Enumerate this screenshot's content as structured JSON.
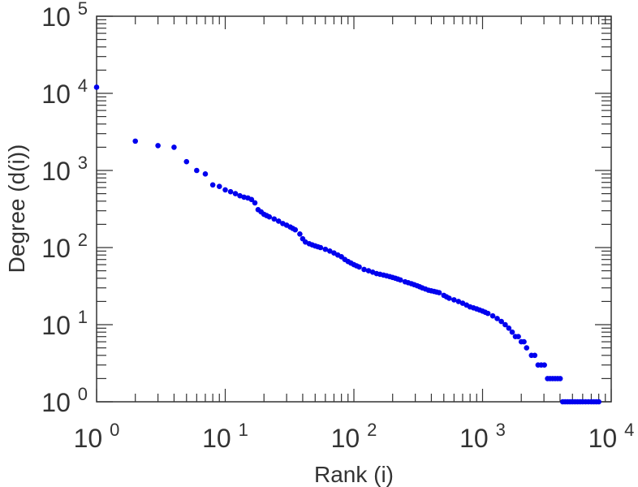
{
  "chart_data": {
    "type": "scatter",
    "xlabel": "Rank (i)",
    "ylabel": "Degree (d(i))",
    "x_scale": "log",
    "y_scale": "log",
    "xlim": [
      1,
      10000
    ],
    "ylim": [
      1,
      100000
    ],
    "x_ticks": [
      {
        "base": "10",
        "exp": "0"
      },
      {
        "base": "10",
        "exp": "1"
      },
      {
        "base": "10",
        "exp": "2"
      },
      {
        "base": "10",
        "exp": "3"
      },
      {
        "base": "10",
        "exp": "4"
      }
    ],
    "y_ticks": [
      {
        "base": "10",
        "exp": "0"
      },
      {
        "base": "10",
        "exp": "1"
      },
      {
        "base": "10",
        "exp": "2"
      },
      {
        "base": "10",
        "exp": "3"
      },
      {
        "base": "10",
        "exp": "4"
      },
      {
        "base": "10",
        "exp": "5"
      }
    ],
    "grid": false,
    "color": "#0000ee",
    "points": [
      [
        1,
        12000
      ],
      [
        2,
        2400
      ],
      [
        3,
        2100
      ],
      [
        4,
        2000
      ],
      [
        5,
        1300
      ],
      [
        6,
        1000
      ],
      [
        7,
        900
      ],
      [
        8,
        650
      ],
      [
        9,
        620
      ],
      [
        10,
        560
      ],
      [
        11,
        530
      ],
      [
        12,
        500
      ],
      [
        13,
        470
      ],
      [
        14,
        450
      ],
      [
        15,
        440
      ],
      [
        16,
        420
      ],
      [
        17,
        380
      ],
      [
        18,
        310
      ],
      [
        19,
        290
      ],
      [
        20,
        270
      ],
      [
        22,
        250
      ],
      [
        24,
        235
      ],
      [
        26,
        220
      ],
      [
        28,
        205
      ],
      [
        30,
        195
      ],
      [
        32,
        185
      ],
      [
        35,
        170
      ],
      [
        38,
        150
      ],
      [
        40,
        130
      ],
      [
        42,
        118
      ],
      [
        45,
        112
      ],
      [
        50,
        105
      ],
      [
        55,
        100
      ],
      [
        60,
        95
      ],
      [
        65,
        90
      ],
      [
        70,
        85
      ],
      [
        75,
        80
      ],
      [
        80,
        76
      ],
      [
        85,
        70
      ],
      [
        90,
        66
      ],
      [
        100,
        60
      ],
      [
        110,
        56
      ],
      [
        120,
        52
      ],
      [
        130,
        50
      ],
      [
        140,
        48
      ],
      [
        150,
        46
      ],
      [
        170,
        44
      ],
      [
        190,
        42
      ],
      [
        210,
        40
      ],
      [
        230,
        38
      ],
      [
        250,
        36
      ],
      [
        280,
        34
      ],
      [
        310,
        32
      ],
      [
        340,
        30
      ],
      [
        380,
        28
      ],
      [
        420,
        27
      ],
      [
        460,
        26
      ],
      [
        500,
        24
      ],
      [
        550,
        22
      ],
      [
        600,
        21
      ],
      [
        650,
        20
      ],
      [
        700,
        19
      ],
      [
        750,
        18
      ],
      [
        800,
        17
      ],
      [
        850,
        16.5
      ],
      [
        900,
        16
      ],
      [
        1000,
        15
      ],
      [
        1100,
        14
      ],
      [
        1200,
        13
      ],
      [
        1300,
        12
      ],
      [
        1400,
        11
      ],
      [
        1500,
        10
      ],
      [
        1600,
        9
      ],
      [
        1700,
        8
      ],
      [
        1800,
        7
      ],
      [
        2000,
        6
      ],
      [
        2200,
        5
      ],
      [
        2400,
        4
      ],
      [
        2700,
        3
      ],
      [
        3200,
        2
      ],
      [
        4200,
        1
      ],
      [
        5000,
        1
      ],
      [
        6000,
        1
      ],
      [
        7000,
        1
      ],
      [
        8000,
        1
      ]
    ]
  }
}
